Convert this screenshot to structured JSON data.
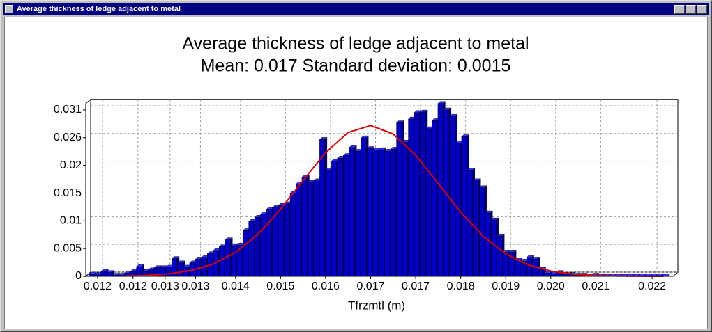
{
  "window": {
    "title": "Average thickness of ledge adjacent to metal"
  },
  "chart_data": {
    "type": "histogram",
    "title": "Average thickness of ledge adjacent to metal",
    "subtitle": "Mean: 0.017 Standard deviation: 0.0015",
    "xlabel": "Tfrzmtl (m)",
    "color": "#0000c8",
    "grid": true,
    "xlim": [
      0.01154,
      0.02197
    ],
    "ylim": [
      0,
      0.0322
    ],
    "xticks": [
      {
        "value": 0.01175,
        "label": "0.012"
      },
      {
        "value": 0.01238,
        "label": "0.012"
      },
      {
        "value": 0.01295,
        "label": "0.013"
      },
      {
        "value": 0.01349,
        "label": "0.013"
      },
      {
        "value": 0.0142,
        "label": "0.014"
      },
      {
        "value": 0.015,
        "label": "0.015"
      },
      {
        "value": 0.0158,
        "label": "0.016"
      },
      {
        "value": 0.0166,
        "label": "0.017"
      },
      {
        "value": 0.0174,
        "label": "0.017"
      },
      {
        "value": 0.0182,
        "label": "0.018"
      },
      {
        "value": 0.019,
        "label": "0.019"
      },
      {
        "value": 0.0198,
        "label": "0.020"
      },
      {
        "value": 0.0206,
        "label": "0.021"
      },
      {
        "value": 0.0216,
        "label": "0.022"
      }
    ],
    "yticks": [
      0,
      {
        "value": 0.005167,
        "label": "0.005"
      },
      {
        "value": 0.010333,
        "label": "0.01"
      },
      {
        "value": 0.01549,
        "label": "0.015"
      },
      {
        "value": 0.020667,
        "label": "0.02"
      },
      {
        "value": 0.025833,
        "label": "0.026"
      },
      0.031
    ],
    "bins": [
      0.0116,
      0.011705,
      0.01181,
      0.011915,
      0.01202,
      0.012125,
      0.01223,
      0.012335,
      0.01244,
      0.012545,
      0.01265,
      0.012755,
      0.01286,
      0.012965,
      0.01307,
      0.013175,
      0.01328,
      0.013385,
      0.01349,
      0.013595,
      0.0137,
      0.013805,
      0.01391,
      0.014015,
      0.01412,
      0.014225,
      0.01433,
      0.014435,
      0.01454,
      0.014645,
      0.01475,
      0.014855,
      0.01496,
      0.015065,
      0.01517,
      0.015275,
      0.01538,
      0.015485,
      0.01559,
      0.015695,
      0.0158,
      0.015905,
      0.01601,
      0.016115,
      0.01622,
      0.016325,
      0.01643,
      0.016535,
      0.01664,
      0.016745,
      0.01685,
      0.016955,
      0.01706,
      0.017165,
      0.01727,
      0.017375,
      0.01748,
      0.017585,
      0.01769,
      0.017795,
      0.0179,
      0.018005,
      0.01811,
      0.018215,
      0.01832,
      0.018425,
      0.01853,
      0.018635,
      0.01874,
      0.018845,
      0.01895,
      0.019055,
      0.01916,
      0.019265,
      0.01937,
      0.019475,
      0.01958,
      0.019685,
      0.01979,
      0.019895,
      0.02,
      0.020105,
      0.02021,
      0.020315,
      0.02042,
      0.020525,
      0.02063,
      0.020735,
      0.02084,
      0.020945,
      0.02105,
      0.021155,
      0.02126,
      0.021365,
      0.02147,
      0.021575,
      0.02168,
      0.021785,
      0.02189
    ],
    "values": [
      0.0004,
      0.0003,
      0.0009,
      0.0007,
      0.0002,
      0.0002,
      0.0006,
      0.0009,
      0.0018,
      0.0009,
      0.0012,
      0.0016,
      0.0016,
      0.0017,
      0.0033,
      0.0025,
      0.0017,
      0.0025,
      0.0032,
      0.0035,
      0.0042,
      0.0048,
      0.0055,
      0.0068,
      0.0057,
      0.0058,
      0.0085,
      0.0102,
      0.011,
      0.0116,
      0.0125,
      0.0128,
      0.0132,
      0.0135,
      0.0155,
      0.0172,
      0.0185,
      0.0175,
      0.0178,
      0.0255,
      0.0198,
      0.0215,
      0.022,
      0.0225,
      0.024,
      0.0233,
      0.0258,
      0.0238,
      0.0235,
      0.0236,
      0.0233,
      0.0237,
      0.0286,
      0.025,
      0.0293,
      0.0305,
      0.0306,
      0.0275,
      0.029,
      0.0322,
      0.031,
      0.0298,
      0.0248,
      0.026,
      0.0198,
      0.0178,
      0.0165,
      0.0118,
      0.0105,
      0.0075,
      0.0045,
      0.0045,
      0.003,
      0.0028,
      0.0035,
      0.0032,
      0.0013,
      0.0006,
      0.0004,
      0.0007,
      0.0003,
      0.0003,
      0.0002,
      0.0002,
      0.0001,
      0.0002,
      0.0001,
      0.0001,
      0.0001,
      0.0001,
      0.0001,
      0.0001,
      0.0001,
      0.0001,
      0.0001,
      0.0001,
      0.0001,
      0.0001
    ],
    "curve": {
      "color": "#e00000",
      "x": [
        0.0122,
        0.0126,
        0.013,
        0.0134,
        0.0138,
        0.0142,
        0.0146,
        0.015,
        0.0154,
        0.0158,
        0.0162,
        0.0166,
        0.017,
        0.0174,
        0.0178,
        0.0182,
        0.0186,
        0.019,
        0.0194,
        0.0198,
        0.0202,
        0.0206,
        0.021,
        0.0214,
        0.0218
      ],
      "values": [
        5.5e-05,
        0.00016,
        0.00044,
        0.00105,
        0.00228,
        0.00445,
        0.00785,
        0.01248,
        0.01787,
        0.02305,
        0.02681,
        0.0281,
        0.02653,
        0.02258,
        0.01732,
        0.01197,
        0.00745,
        0.00418,
        0.00212,
        0.00097,
        0.0004,
        0.00015,
        5e-05,
        1e-05,
        0
      ]
    }
  }
}
